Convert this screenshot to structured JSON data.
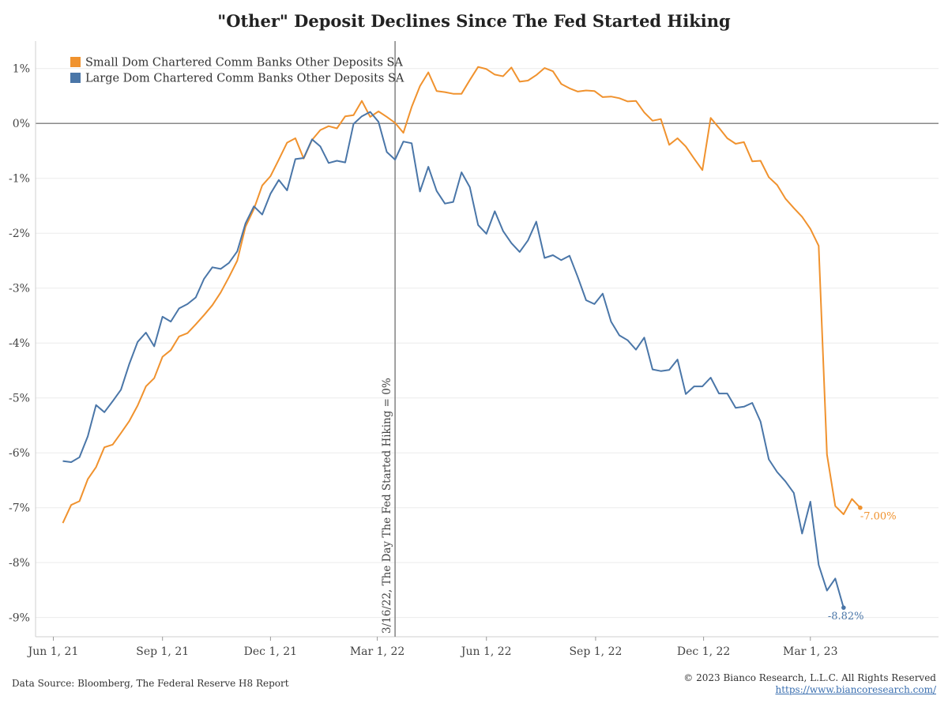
{
  "chart_data": {
    "type": "line",
    "title": "\"Other\" Deposit Declines Since The Fed Started Hiking",
    "x_ticks": [
      "Jun 1, 21",
      "Sep 1, 21",
      "Dec 1, 21",
      "Mar 1, 22",
      "Jun 1, 22",
      "Sep 1, 22",
      "Dec 1, 22",
      "Mar 1, 23"
    ],
    "y_ticks": [
      "1%",
      "0%",
      "-1%",
      "-2%",
      "-3%",
      "-4%",
      "-5%",
      "-6%",
      "-7%",
      "-8%",
      "-9%"
    ],
    "ylim": [
      -9.35,
      1.5
    ],
    "xlim": [
      "2021-05-17",
      "2023-06-17"
    ],
    "grid": "horizontal",
    "legend_position": "top-left",
    "zero_line": 0,
    "vline": {
      "date": "2022-03-16",
      "label": "3/16/22, The Day The Fed Started Hiking = 0%"
    },
    "series": [
      {
        "name": "Small Dom Chartered Comm Banks Other Deposits SA",
        "color": "#f0922e",
        "end_label": "-7.00%",
        "start": "2021-06-09",
        "interval_days": 7,
        "values": [
          -7.28,
          -6.95,
          -6.88,
          -6.48,
          -6.26,
          -5.9,
          -5.85,
          -5.64,
          -5.42,
          -5.14,
          -4.79,
          -4.64,
          -4.25,
          -4.13,
          -3.88,
          -3.82,
          -3.66,
          -3.49,
          -3.31,
          -3.08,
          -2.8,
          -2.5,
          -1.88,
          -1.56,
          -1.13,
          -0.96,
          -0.66,
          -0.35,
          -0.27,
          -0.64,
          -0.3,
          -0.12,
          -0.05,
          -0.09,
          0.13,
          0.15,
          0.41,
          0.12,
          0.22,
          0.12,
          0.01,
          -0.17,
          0.3,
          0.68,
          0.93,
          0.59,
          0.57,
          0.54,
          0.54,
          0.79,
          1.03,
          0.99,
          0.89,
          0.86,
          1.02,
          0.76,
          0.78,
          0.88,
          1.01,
          0.95,
          0.72,
          0.64,
          0.58,
          0.6,
          0.59,
          0.48,
          0.49,
          0.46,
          0.4,
          0.41,
          0.2,
          0.05,
          0.08,
          -0.39,
          -0.27,
          -0.42,
          -0.64,
          -0.85,
          0.1,
          -0.08,
          -0.27,
          -0.37,
          -0.34,
          -0.69,
          -0.68,
          -0.98,
          -1.12,
          -1.37,
          -1.54,
          -1.7,
          -1.92,
          -2.23,
          -6.03,
          -6.97,
          -7.12,
          -6.84,
          -7.0
        ]
      },
      {
        "name": "Large Dom Chartered Comm Banks Other Deposits SA",
        "color": "#4a76a8",
        "end_label": "-8.82%",
        "start": "2021-06-09",
        "interval_days": 7,
        "values": [
          -6.15,
          -6.17,
          -6.08,
          -5.7,
          -5.13,
          -5.26,
          -5.06,
          -4.85,
          -4.38,
          -3.98,
          -3.81,
          -4.06,
          -3.52,
          -3.61,
          -3.37,
          -3.29,
          -3.17,
          -2.83,
          -2.62,
          -2.65,
          -2.54,
          -2.33,
          -1.82,
          -1.51,
          -1.66,
          -1.28,
          -1.03,
          -1.22,
          -0.65,
          -0.63,
          -0.29,
          -0.42,
          -0.72,
          -0.68,
          -0.71,
          -0.01,
          0.13,
          0.21,
          0.03,
          -0.52,
          -0.66,
          -0.33,
          -0.36,
          -1.24,
          -0.79,
          -1.23,
          -1.46,
          -1.43,
          -0.89,
          -1.16,
          -1.85,
          -2.01,
          -1.6,
          -1.96,
          -2.18,
          -2.34,
          -2.13,
          -1.79,
          -2.45,
          -2.4,
          -2.49,
          -2.41,
          -2.8,
          -3.22,
          -3.29,
          -3.1,
          -3.61,
          -3.86,
          -3.95,
          -4.12,
          -3.9,
          -4.48,
          -4.51,
          -4.49,
          -4.3,
          -4.93,
          -4.79,
          -4.79,
          -4.63,
          -4.92,
          -4.92,
          -5.18,
          -5.16,
          -5.09,
          -5.43,
          -6.12,
          -6.35,
          -6.52,
          -6.73,
          -7.47,
          -6.89,
          -8.04,
          -8.51,
          -8.29,
          -8.82
        ]
      }
    ]
  },
  "footer": {
    "source": "Data Source: Bloomberg, The Federal Reserve H8 Report",
    "copyright": "© 2023 Bianco Research, L.L.C. All Rights Reserved",
    "url": "https://www.biancoresearch.com/"
  }
}
